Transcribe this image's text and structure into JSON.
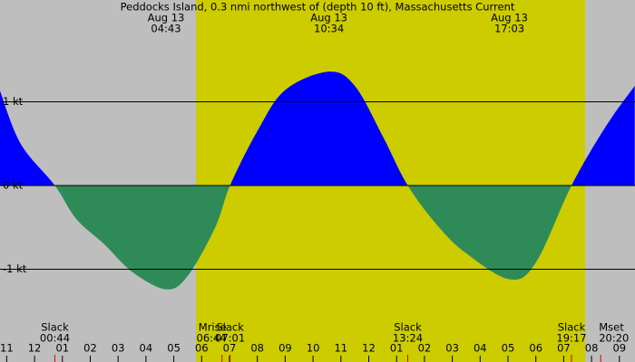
{
  "chart_data": {
    "type": "area",
    "title": "Peddocks Island, 0.3 nmi northwest of (depth 10 ft), Massachusetts Current",
    "x": [
      -1.25,
      -0.5,
      0.73,
      1.5,
      2.5,
      3.5,
      4.72,
      5.5,
      6.5,
      7.02,
      8,
      9,
      10.57,
      11.5,
      12.5,
      13.4,
      14.5,
      15.5,
      17.05,
      18,
      19.28,
      20.5,
      21.55
    ],
    "values": [
      1.14,
      0.5,
      0,
      -0.4,
      -0.7,
      -1.03,
      -1.24,
      -1.08,
      -0.49,
      0,
      0.65,
      1.14,
      1.36,
      1.19,
      0.59,
      0,
      -0.49,
      -0.81,
      -1.12,
      -0.92,
      0,
      0.7,
      1.19
    ],
    "flood_color": "#0000ff",
    "ebb_color": "#2e8b57",
    "night_color": "#bebebe",
    "day_color": "#cccc00",
    "daylight": [
      5.8,
      19.77
    ],
    "xlim": [
      -1.24,
      21.56
    ],
    "xticks": [
      {
        "value": -1,
        "label": "11"
      },
      {
        "value": 0,
        "label": "12"
      },
      {
        "value": 1,
        "label": "01"
      },
      {
        "value": 2,
        "label": "02"
      },
      {
        "value": 3,
        "label": "03"
      },
      {
        "value": 4,
        "label": "04"
      },
      {
        "value": 5,
        "label": "05"
      },
      {
        "value": 6,
        "label": "06"
      },
      {
        "value": 7,
        "label": "07"
      },
      {
        "value": 8,
        "label": "08"
      },
      {
        "value": 9,
        "label": "09"
      },
      {
        "value": 10,
        "label": "10"
      },
      {
        "value": 11,
        "label": "11"
      },
      {
        "value": 12,
        "label": "12"
      },
      {
        "value": 13,
        "label": "01"
      },
      {
        "value": 14,
        "label": "02"
      },
      {
        "value": 15,
        "label": "03"
      },
      {
        "value": 16,
        "label": "04"
      },
      {
        "value": 17,
        "label": "05"
      },
      {
        "value": 18,
        "label": "06"
      },
      {
        "value": 19,
        "label": "07"
      },
      {
        "value": 20,
        "label": "08"
      },
      {
        "value": 21,
        "label": "09"
      }
    ],
    "ylim": [
      -2.108,
      2.216
    ],
    "yticks": [
      {
        "value": 1,
        "label": "1 kt"
      },
      {
        "value": 0,
        "label": "0 kt"
      },
      {
        "value": -1,
        "label": "-1 kt"
      }
    ],
    "extremes": [
      {
        "date": "Aug 13",
        "time": "04:43",
        "hour": 4.72
      },
      {
        "date": "Aug 13",
        "time": "10:34",
        "hour": 10.57
      },
      {
        "date": "Aug 13",
        "time": "17:03",
        "hour": 17.05
      }
    ],
    "events": [
      {
        "label": "Slack",
        "time": "00:44",
        "hour": 0.73
      },
      {
        "label": "Mrise",
        "time": "06:44",
        "hour": 6.73
      },
      {
        "label": "Slack",
        "time": "07:01",
        "hour": 7.02
      },
      {
        "label": "Slack",
        "time": "13:24",
        "hour": 13.4
      },
      {
        "label": "Slack",
        "time": "19:17",
        "hour": 19.28
      },
      {
        "label": "Mset",
        "time": "20:20",
        "hour": 20.33
      }
    ]
  }
}
